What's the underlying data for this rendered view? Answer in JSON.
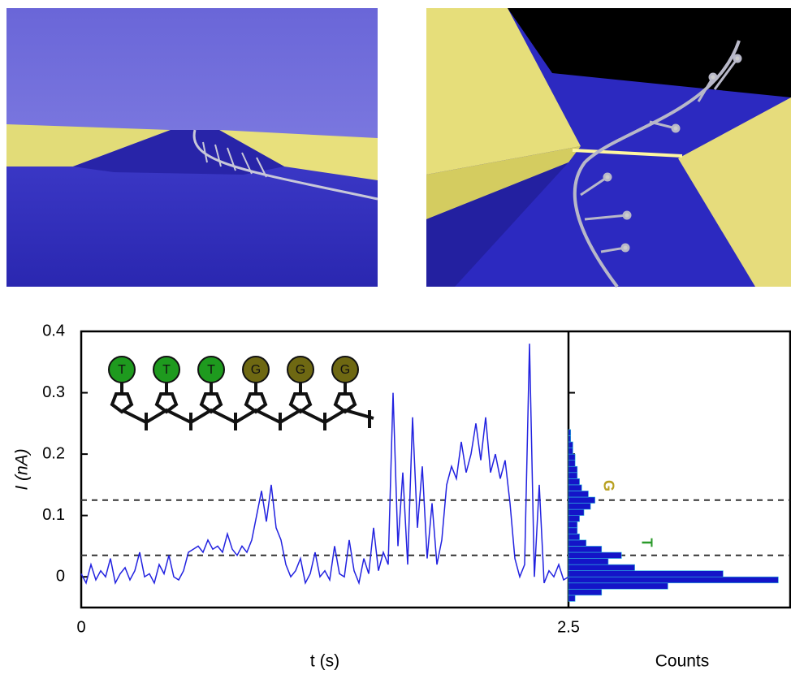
{
  "chart_data": [
    {
      "type": "line",
      "y_label": "I (nA)",
      "x_label": "t (s)",
      "xlim": [
        0,
        2.5
      ],
      "xticks": [
        0,
        2.5
      ],
      "ylim": [
        -0.05,
        0.4
      ],
      "yticks": [
        0,
        0.1,
        0.2,
        0.3,
        0.4
      ],
      "hlines": [
        0.035,
        0.125
      ],
      "sequence": [
        "T",
        "T",
        "T",
        "G",
        "G",
        "G"
      ],
      "sequence_colors": [
        "#1e9a1e",
        "#1e9a1e",
        "#1e9a1e",
        "#6e6812",
        "#6e6812",
        "#6e6812"
      ],
      "color": "#2222e0",
      "x": [
        0,
        0.025,
        0.05,
        0.075,
        0.1,
        0.125,
        0.15,
        0.175,
        0.2,
        0.225,
        0.25,
        0.275,
        0.3,
        0.325,
        0.35,
        0.375,
        0.4,
        0.425,
        0.45,
        0.475,
        0.5,
        0.525,
        0.55,
        0.575,
        0.6,
        0.625,
        0.65,
        0.675,
        0.7,
        0.725,
        0.75,
        0.775,
        0.8,
        0.825,
        0.85,
        0.875,
        0.9,
        0.925,
        0.95,
        0.975,
        1.0,
        1.025,
        1.05,
        1.075,
        1.1,
        1.125,
        1.15,
        1.175,
        1.2,
        1.225,
        1.25,
        1.275,
        1.3,
        1.325,
        1.35,
        1.375,
        1.4,
        1.425,
        1.45,
        1.475,
        1.5,
        1.525,
        1.55,
        1.575,
        1.6,
        1.625,
        1.65,
        1.675,
        1.7,
        1.725,
        1.75,
        1.775,
        1.8,
        1.825,
        1.85,
        1.875,
        1.9,
        1.925,
        1.95,
        1.975,
        2.0,
        2.025,
        2.05,
        2.075,
        2.1,
        2.125,
        2.15,
        2.175,
        2.2,
        2.225,
        2.25,
        2.275,
        2.3,
        2.325,
        2.35,
        2.375,
        2.4,
        2.425,
        2.45,
        2.475,
        2.5
      ],
      "values": [
        0.005,
        -0.01,
        0.02,
        -0.005,
        0.01,
        0.0,
        0.03,
        -0.01,
        0.005,
        0.015,
        -0.005,
        0.01,
        0.04,
        0.0,
        0.005,
        -0.01,
        0.02,
        0.005,
        0.035,
        0.0,
        -0.005,
        0.01,
        0.04,
        0.045,
        0.05,
        0.04,
        0.06,
        0.045,
        0.05,
        0.04,
        0.07,
        0.045,
        0.035,
        0.05,
        0.04,
        0.06,
        0.1,
        0.14,
        0.09,
        0.15,
        0.08,
        0.06,
        0.02,
        0.0,
        0.01,
        0.03,
        -0.01,
        0.005,
        0.04,
        0.0,
        0.01,
        -0.005,
        0.05,
        0.005,
        0.0,
        0.06,
        0.01,
        -0.01,
        0.03,
        0.005,
        0.08,
        0.01,
        0.04,
        0.02,
        0.3,
        0.05,
        0.17,
        0.02,
        0.26,
        0.08,
        0.18,
        0.03,
        0.12,
        0.02,
        0.06,
        0.15,
        0.18,
        0.16,
        0.22,
        0.17,
        0.2,
        0.25,
        0.19,
        0.26,
        0.17,
        0.2,
        0.16,
        0.19,
        0.12,
        0.03,
        0.0,
        0.02,
        0.38,
        0.0,
        0.15,
        -0.01,
        0.01,
        0.0,
        0.02,
        -0.005,
        0.0
      ]
    },
    {
      "type": "histogram",
      "x_label": "Counts",
      "xlim": [
        0,
        100
      ],
      "ylim": [
        -0.05,
        0.4
      ],
      "peak_labels": [
        "G",
        "T"
      ],
      "peak_label_colors": [
        "#b8a020",
        "#2a9a2a"
      ],
      "color": "#1414c8",
      "bins": [
        -0.04,
        -0.03,
        -0.02,
        -0.01,
        0,
        0.01,
        0.02,
        0.03,
        0.04,
        0.05,
        0.06,
        0.07,
        0.08,
        0.09,
        0.1,
        0.11,
        0.12,
        0.13,
        0.14,
        0.15,
        0.16,
        0.17,
        0.18,
        0.19,
        0.2,
        0.21,
        0.22,
        0.23,
        0.24
      ],
      "values": [
        3,
        15,
        45,
        95,
        70,
        30,
        18,
        24,
        15,
        8,
        5,
        4,
        4,
        5,
        7,
        10,
        12,
        9,
        6,
        5,
        4,
        4,
        3,
        3,
        2,
        2,
        1,
        1
      ]
    }
  ]
}
